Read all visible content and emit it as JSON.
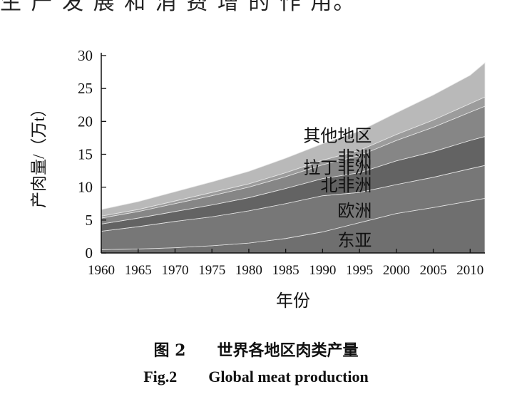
{
  "page": {
    "top_text": "生 产 发 展 和 消 费 增 的 作 用。"
  },
  "figure": {
    "caption_cn_label": "图 2",
    "caption_cn_title": "世界各地区肉类产量",
    "caption_en_label": "Fig.2",
    "caption_en_title": "Global meat production"
  },
  "chart_data": {
    "type": "area",
    "stacked": true,
    "xlabel": "年份",
    "ylabel": "产肉量/（万t）",
    "xlim": [
      1960,
      2012
    ],
    "ylim": [
      0,
      30
    ],
    "x_ticks": [
      1960,
      1965,
      1970,
      1975,
      1980,
      1985,
      1990,
      1995,
      2000,
      2005,
      2010
    ],
    "y_ticks": [
      0,
      5,
      10,
      15,
      20,
      25,
      30
    ],
    "x": [
      1960,
      1965,
      1970,
      1975,
      1980,
      1985,
      1990,
      1995,
      2000,
      2005,
      2010,
      2012
    ],
    "series": [
      {
        "name": "东亚",
        "color": "#6f6f6f",
        "values": [
          0.5,
          0.6,
          0.8,
          1.1,
          1.5,
          2.2,
          3.2,
          4.6,
          6.0,
          6.9,
          7.9,
          8.3
        ]
      },
      {
        "name": "欧洲",
        "color": "#777777",
        "values": [
          2.8,
          3.4,
          4.0,
          4.4,
          4.9,
          5.3,
          5.5,
          4.6,
          4.4,
          4.6,
          4.9,
          5.0
        ]
      },
      {
        "name": "北非洲",
        "color": "#636363",
        "values": [
          1.1,
          1.3,
          1.5,
          1.8,
          2.0,
          2.3,
          2.6,
          3.0,
          3.6,
          3.9,
          4.3,
          4.4
        ]
      },
      {
        "name": "拉丁非洲",
        "color": "#868686",
        "values": [
          0.9,
          1.0,
          1.2,
          1.4,
          1.6,
          1.8,
          2.1,
          2.6,
          3.1,
          3.7,
          4.3,
          4.6
        ]
      },
      {
        "name": "非洲",
        "color": "#9c9c9c",
        "values": [
          0.3,
          0.3,
          0.4,
          0.5,
          0.5,
          0.6,
          0.7,
          0.8,
          0.9,
          1.1,
          1.3,
          1.4
        ]
      },
      {
        "name": "其他地区",
        "color": "#b9b9b9",
        "values": [
          1.0,
          1.2,
          1.4,
          1.6,
          1.9,
          2.2,
          2.5,
          2.9,
          3.3,
          3.8,
          4.3,
          5.2
        ]
      }
    ],
    "legend": "inline-labels-center"
  }
}
